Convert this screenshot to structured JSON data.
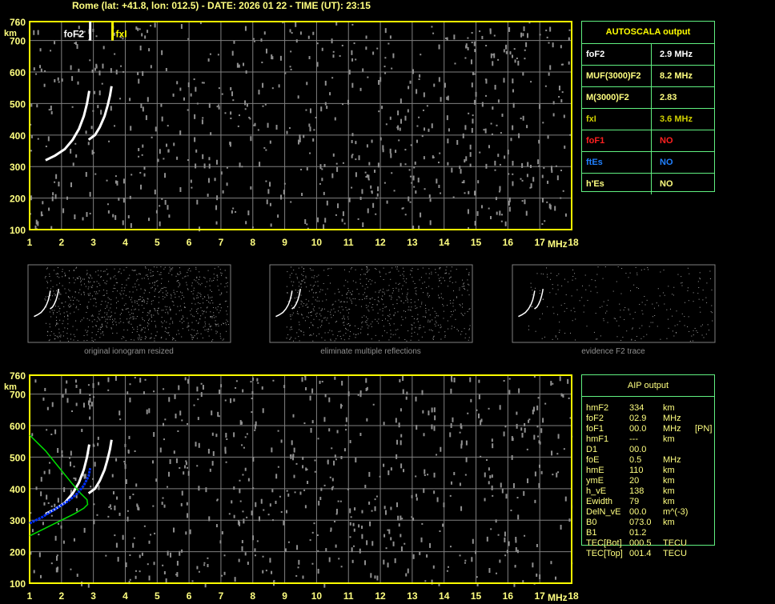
{
  "header": {
    "title": "Rome (lat: +41.8, lon: 012.5) - DATE: 2026 01 22 - TIME (UT): 23:15"
  },
  "colors": {
    "axis": "#ffff00",
    "grid": "#808080",
    "trace": "#ffffff",
    "profile": "#00e000",
    "fit": "#0030ff",
    "table_border": "#60f080"
  },
  "autoscala": {
    "title": "AUTOSCALA output",
    "rows": [
      {
        "k": "foF2",
        "v": "2.9 MHz",
        "color": "#ffffff"
      },
      {
        "k": "MUF(3000)F2",
        "v": "8.2 MHz",
        "color": "#ffff80"
      },
      {
        "k": "M(3000)F2",
        "v": "2.83",
        "color": "#ffff80"
      },
      {
        "k": "fxI",
        "v": "3.6 MHz",
        "color": "#d0d000"
      },
      {
        "k": "foF1",
        "v": "NO",
        "color": "#ff2020"
      },
      {
        "k": "ftEs",
        "v": "NO",
        "color": "#2080ff"
      },
      {
        "k": "h'Es",
        "v": "NO",
        "color": "#ffff80"
      }
    ]
  },
  "aip": {
    "title": "AIP output",
    "rows": [
      [
        "hmF2",
        "334",
        "km",
        ""
      ],
      [
        "foF2",
        "02.9",
        "MHz",
        ""
      ],
      [
        "foF1",
        "00.0",
        "MHz",
        "[PN]"
      ],
      [
        "hmF1",
        "---",
        "km",
        ""
      ],
      [
        "D1",
        "00.0",
        "",
        ""
      ],
      [
        "foE",
        "0.5",
        "MHz",
        ""
      ],
      [
        "hmE",
        "110",
        "km",
        ""
      ],
      [
        "ymE",
        "20",
        "km",
        ""
      ],
      [
        "h_vE",
        "138",
        "km",
        ""
      ],
      [
        "Ewidth",
        "79",
        "km",
        ""
      ],
      [
        "DelN_vE",
        "00.0",
        "m^(-3)",
        ""
      ],
      [
        "B0",
        "073.0",
        "km",
        ""
      ],
      [
        "B1",
        "01.2",
        "",
        ""
      ],
      [
        "TEC[Bot]",
        "000.5",
        "TECU",
        ""
      ],
      [
        "TEC[Top]",
        "001.4",
        "TECU",
        ""
      ]
    ]
  },
  "thumbnails": [
    "original ionogram resized",
    "eliminate multiple reflections",
    "evidence F2 trace"
  ],
  "chart_data": [
    {
      "type": "scatter",
      "xlabel": "MHz",
      "ylabel": "km",
      "xlim": [
        1,
        18
      ],
      "ylim": [
        100,
        760
      ],
      "xticks": [
        "1",
        "2",
        "3",
        "4",
        "5",
        "6",
        "7",
        "8",
        "9",
        "10",
        "11",
        "12",
        "13",
        "14",
        "15",
        "16",
        "17",
        "18"
      ],
      "yticks": [
        "100",
        "200",
        "300",
        "400",
        "500",
        "600",
        "700",
        "760"
      ],
      "grid": true,
      "annotations": [
        {
          "label": "foF2",
          "x": 2.9
        },
        {
          "label": "fxI",
          "x": 3.6
        }
      ],
      "series": [
        {
          "x": [
            1.5,
            1.8,
            2.1,
            2.35,
            2.55,
            2.7,
            2.8,
            2.87
          ],
          "y": [
            320,
            335,
            355,
            385,
            420,
            460,
            500,
            540
          ]
        },
        {
          "x": [
            2.85,
            3.05,
            3.2,
            3.35,
            3.45,
            3.52,
            3.57
          ],
          "y": [
            385,
            400,
            425,
            460,
            495,
            525,
            555
          ]
        }
      ]
    },
    {
      "type": "line",
      "xlabel": "MHz",
      "ylabel": "km",
      "xlim": [
        1,
        18
      ],
      "ylim": [
        100,
        760
      ],
      "xticks": [
        "1",
        "2",
        "3",
        "4",
        "5",
        "6",
        "7",
        "8",
        "9",
        "10",
        "11",
        "12",
        "13",
        "14",
        "15",
        "16",
        "17",
        "18"
      ],
      "yticks": [
        "100",
        "200",
        "300",
        "400",
        "500",
        "600",
        "700",
        "760"
      ],
      "grid": true,
      "series": [
        {
          "x": [
            1.5,
            1.8,
            2.1,
            2.35,
            2.55,
            2.7,
            2.8,
            2.87
          ],
          "y": [
            320,
            335,
            355,
            385,
            420,
            460,
            500,
            540
          ]
        },
        {
          "x": [
            2.85,
            3.05,
            3.2,
            3.35,
            3.45,
            3.52,
            3.57
          ],
          "y": [
            385,
            400,
            425,
            460,
            495,
            525,
            555
          ]
        },
        {
          "x": [
            1.0,
            1.5,
            2.0,
            2.4,
            2.7,
            2.82,
            2.8,
            2.6,
            2.3,
            1.9,
            1.5,
            1.0
          ],
          "y": [
            250,
            275,
            300,
            320,
            338,
            350,
            365,
            385,
            420,
            470,
            520,
            570
          ]
        },
        {
          "x": [
            1.0,
            1.4,
            1.8,
            2.2,
            2.5,
            2.7,
            2.85,
            2.9
          ],
          "y": [
            290,
            310,
            335,
            360,
            385,
            410,
            440,
            465
          ]
        }
      ]
    }
  ]
}
